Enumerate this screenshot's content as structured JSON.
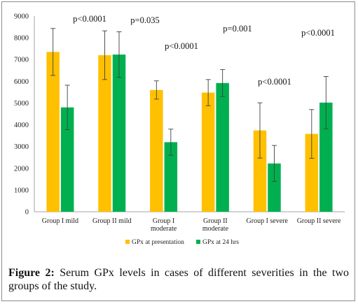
{
  "chart_data": {
    "type": "bar",
    "categories": [
      "Group I mild",
      "Group II mild",
      "Group I moderate",
      "Group II moderate",
      "Group I severe",
      "Group II severe"
    ],
    "category_lines": [
      [
        "Group I mild"
      ],
      [
        "Group II mild"
      ],
      [
        "Group I",
        "moderate"
      ],
      [
        "Group II",
        "moderate"
      ],
      [
        "Group I severe"
      ],
      [
        "Group II severe"
      ]
    ],
    "series": [
      {
        "name": "GPx at presentation",
        "color": "#FFC000",
        "values": [
          7350,
          7200,
          5600,
          5480,
          3740,
          3580
        ],
        "errors": [
          1080,
          1120,
          420,
          600,
          1270,
          1120
        ]
      },
      {
        "name": "GPx at 24 hrs",
        "color": "#00B050",
        "values": [
          4800,
          7230,
          3200,
          5920,
          2220,
          5020
        ],
        "errors": [
          1020,
          1050,
          600,
          620,
          830,
          1200
        ]
      }
    ],
    "annotations": [
      "p<0.0001",
      "p=0.035",
      "p<0.0001",
      "p=0.001",
      "p<0.0001",
      "p<0.0001"
    ],
    "ylim": [
      0,
      9000
    ],
    "yticks": [
      0,
      1000,
      2000,
      3000,
      4000,
      5000,
      6000,
      7000,
      8000,
      9000
    ],
    "legend": "bottom",
    "grid": false
  },
  "caption": {
    "label": "Figure 2:",
    "text": " Serum GPx levels in cases of different severities in the two groups of the study."
  }
}
